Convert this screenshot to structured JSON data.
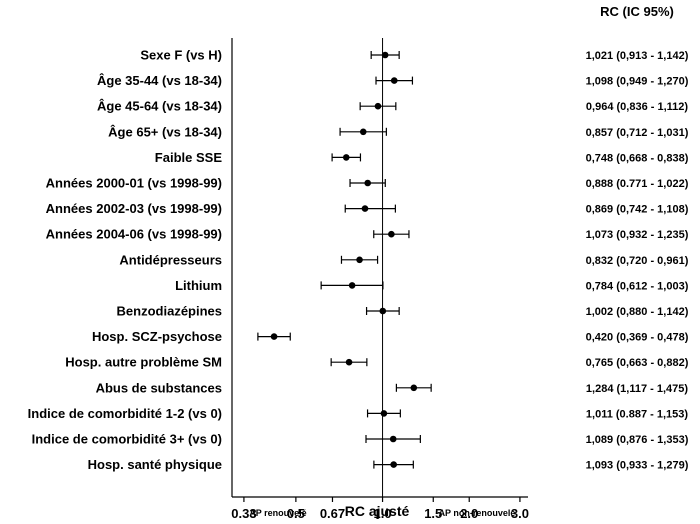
{
  "chart_data": {
    "type": "forest",
    "column_header": "RC (IC 95%)",
    "xlabel": "RC ajusté",
    "x_scale": "log",
    "xlim": [
      0.3,
      3.2
    ],
    "reference_line": 1.0,
    "ticks": [
      {
        "value": 0.33,
        "label": "0.33"
      },
      {
        "value": 0.5,
        "label": "0.5"
      },
      {
        "value": 0.67,
        "label": "0.67"
      },
      {
        "value": 1.0,
        "label": "1.0"
      },
      {
        "value": 1.5,
        "label": "1.5"
      },
      {
        "value": 2.0,
        "label": "2.0"
      },
      {
        "value": 3.0,
        "label": "3.0"
      }
    ],
    "left_annotation": "AP renouvelé",
    "right_annotation": "AP non-renouvelé",
    "rows": [
      {
        "label": "Sexe F (vs H)",
        "or": 1.021,
        "low": 0.913,
        "high": 1.142,
        "text": "1,021 (0,913 - 1,142)"
      },
      {
        "label": "Âge 35-44 (vs 18-34)",
        "or": 1.098,
        "low": 0.949,
        "high": 1.27,
        "text": "1,098 (0,949 - 1,270)"
      },
      {
        "label": "Âge 45-64 (vs 18-34)",
        "or": 0.964,
        "low": 0.836,
        "high": 1.112,
        "text": "0,964 (0,836 - 1,112)"
      },
      {
        "label": "Âge 65+ (vs 18-34)",
        "or": 0.857,
        "low": 0.712,
        "high": 1.031,
        "text": "0,857 (0,712 - 1,031)"
      },
      {
        "label": "Faible SSE",
        "or": 0.748,
        "low": 0.668,
        "high": 0.838,
        "text": "0,748 (0,668 - 0,838)"
      },
      {
        "label": "Années 2000-01 (vs 1998-99)",
        "or": 0.888,
        "low": 0.771,
        "high": 1.022,
        "text": "0,888 (0.771 - 1,022)"
      },
      {
        "label": "Années 2002-03 (vs 1998-99)",
        "or": 0.869,
        "low": 0.742,
        "high": 1.108,
        "text": "0,869 (0,742 - 1,108)"
      },
      {
        "label": "Années 2004-06 (vs 1998-99)",
        "or": 1.073,
        "low": 0.932,
        "high": 1.235,
        "text": "1,073 (0,932 - 1,235)"
      },
      {
        "label": "Antidépresseurs",
        "or": 0.832,
        "low": 0.72,
        "high": 0.961,
        "text": "0,832 (0,720 - 0,961)"
      },
      {
        "label": "Lithium",
        "or": 0.784,
        "low": 0.612,
        "high": 1.003,
        "text": "0,784 (0,612 - 1,003)"
      },
      {
        "label": "Benzodiazépines",
        "or": 1.002,
        "low": 0.88,
        "high": 1.142,
        "text": "1,002 (0,880 - 1,142)"
      },
      {
        "label": "Hosp. SCZ-psychose",
        "or": 0.42,
        "low": 0.369,
        "high": 0.478,
        "text": "0,420 (0,369 - 0,478)"
      },
      {
        "label": "Hosp. autre problème SM",
        "or": 0.765,
        "low": 0.663,
        "high": 0.882,
        "text": "0,765 (0,663 - 0,882)"
      },
      {
        "label": "Abus de substances",
        "or": 1.284,
        "low": 1.117,
        "high": 1.475,
        "text": "1,284 (1,117 - 1,475)"
      },
      {
        "label": "Indice de comorbidité 1-2 (vs 0)",
        "or": 1.011,
        "low": 0.887,
        "high": 1.153,
        "text": "1,011 (0.887 - 1,153)"
      },
      {
        "label": "Indice de comorbidité 3+ (vs 0)",
        "or": 1.089,
        "low": 0.876,
        "high": 1.353,
        "text": "1,089 (0,876 - 1,353)"
      },
      {
        "label": "Hosp. santé physique",
        "or": 1.093,
        "low": 0.933,
        "high": 1.279,
        "text": "1,093 (0,933 - 1,279)"
      }
    ]
  }
}
